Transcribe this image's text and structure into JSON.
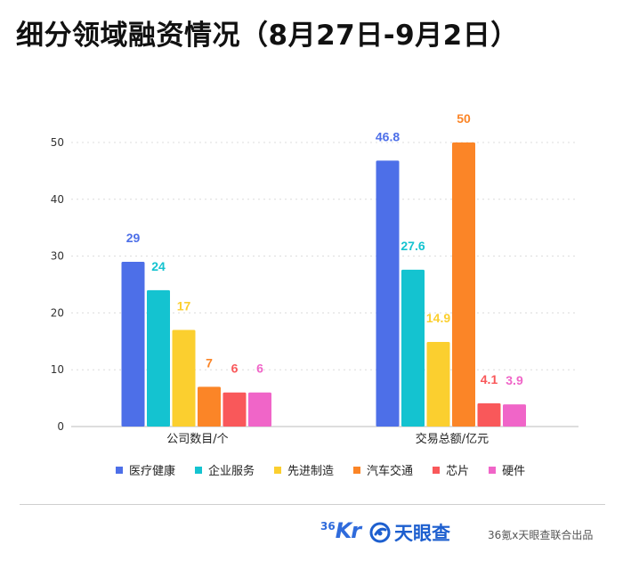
{
  "title": "细分领域融资情况（8月27日-9月2日）",
  "chart_data": {
    "type": "bar",
    "categories": [
      "公司数目/个",
      "交易总额/亿元"
    ],
    "series": [
      {
        "name": "医疗健康",
        "color": "#4d6fe8",
        "values": [
          29,
          46.8
        ],
        "labels": [
          "29",
          "46.8"
        ]
      },
      {
        "name": "企业服务",
        "color": "#14c3d0",
        "values": [
          24,
          27.6
        ],
        "labels": [
          "24",
          "27.6"
        ]
      },
      {
        "name": "先进制造",
        "color": "#fbcf2f",
        "values": [
          17,
          14.9
        ],
        "labels": [
          "17",
          "14.9"
        ]
      },
      {
        "name": "汽车交通",
        "color": "#fb8527",
        "values": [
          7,
          50
        ],
        "labels": [
          "7",
          "50"
        ]
      },
      {
        "name": "芯片",
        "color": "#f9585a",
        "values": [
          6,
          4.1
        ],
        "labels": [
          "6",
          "4.1"
        ]
      },
      {
        "name": "硬件",
        "color": "#f065c8",
        "values": [
          6,
          3.9
        ],
        "labels": [
          "6",
          "3.9"
        ]
      }
    ],
    "yticks": [
      0,
      10,
      20,
      30,
      40,
      50
    ],
    "ylim": [
      0,
      50
    ],
    "grid": true,
    "legend": "bottom",
    "xlabel": "",
    "ylabel": ""
  },
  "footer": {
    "logo_36kr": {
      "num": "36",
      "text": "Kr"
    },
    "logo_tianyancha": "天眼查",
    "credit": "36氪x天眼查联合出品"
  }
}
